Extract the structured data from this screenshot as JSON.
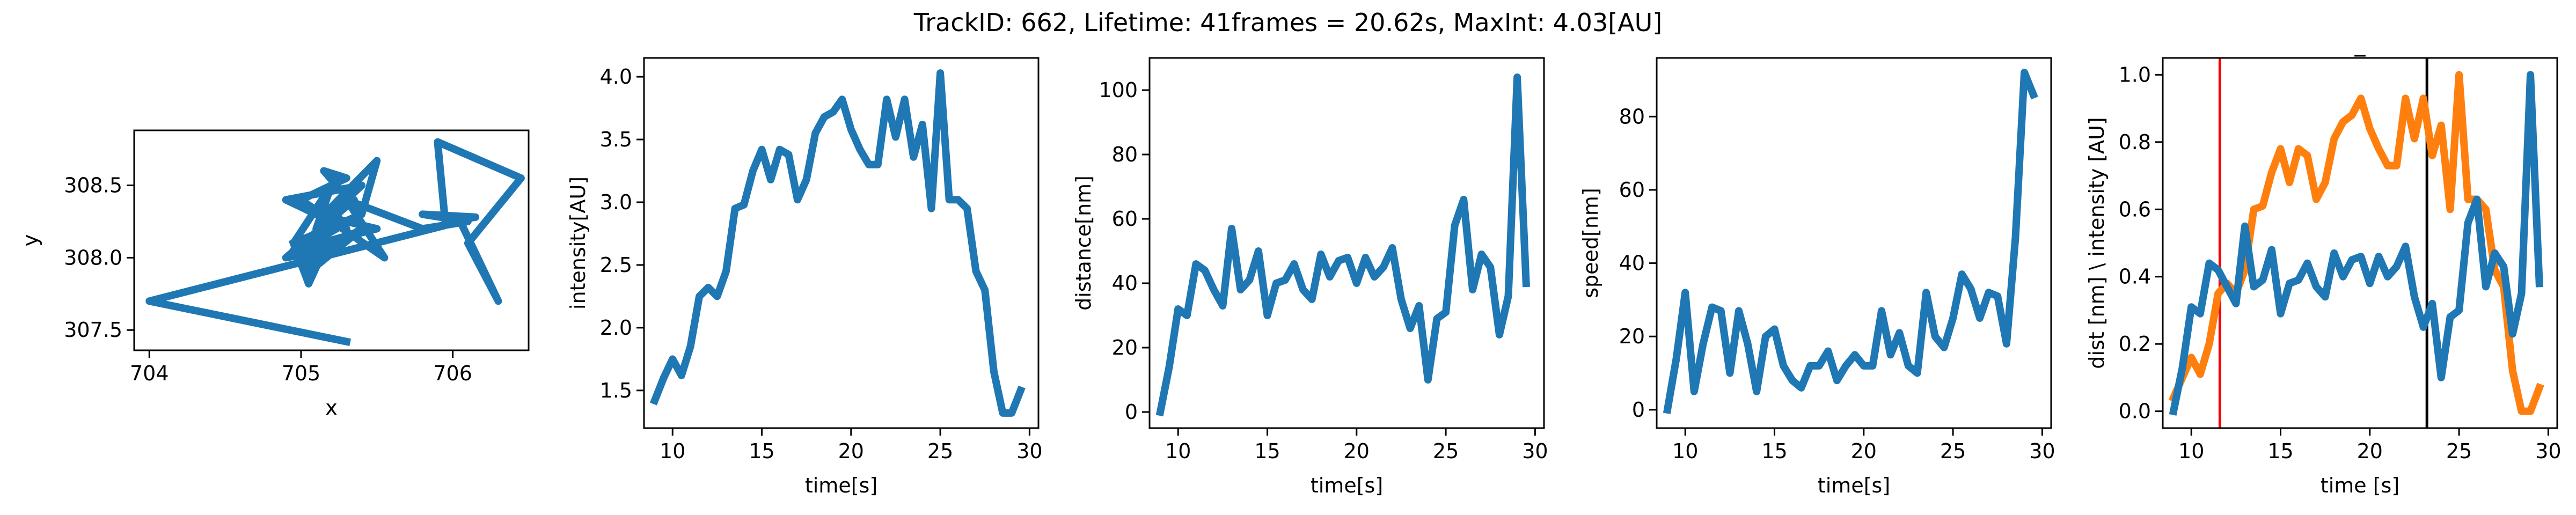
{
  "figure": {
    "suptitle": "TrackID: 662, Lifetime: 41frames = 20.62s, MaxInt: 4.03[AU]",
    "line_color": "#1f77b4",
    "second_line_color": "#ff7f0e",
    "marker_red_color": "#ff0000",
    "marker_black_color": "#000000"
  },
  "chart_data": [
    {
      "type": "line",
      "title": "",
      "xlabel": "x",
      "ylabel": "y",
      "xlim": [
        703.9,
        706.5
      ],
      "ylim": [
        307.36,
        308.88
      ],
      "xticks": [
        704,
        705,
        706
      ],
      "yticks": [
        307.5,
        308.0,
        308.5
      ],
      "ytick_labels": [
        "307.5",
        "308.0",
        "308.5"
      ],
      "series": [
        {
          "x": [
            705.3,
            704.0,
            706.05,
            706.3,
            706.1,
            706.45,
            705.9,
            705.95,
            706.15,
            705.8,
            706.1,
            705.8,
            705.3,
            705.55,
            705.0,
            705.3,
            705.15,
            705.4,
            705.5,
            705.2,
            705.3,
            704.9,
            705.4,
            705.1,
            705.2,
            704.95,
            705.4,
            704.9,
            705.35,
            705.1,
            705.5,
            704.95,
            705.3,
            705.0,
            705.4,
            705.05,
            705.1,
            704.9,
            705.15,
            705.05,
            704.95
          ],
          "y": [
            307.42,
            307.7,
            308.25,
            307.7,
            308.1,
            308.55,
            308.8,
            308.25,
            308.28,
            308.3,
            308.25,
            308.2,
            308.4,
            308.0,
            308.4,
            308.55,
            308.6,
            308.3,
            308.67,
            308.35,
            308.2,
            308.4,
            308.5,
            308.2,
            308.5,
            308.1,
            308.3,
            308.0,
            308.4,
            308.3,
            308.2,
            308.05,
            308.15,
            307.95,
            308.2,
            307.9,
            308.1,
            308.0,
            308.05,
            307.82,
            308.1
          ]
        }
      ]
    },
    {
      "type": "line",
      "title": "",
      "xlabel": "time[s]",
      "ylabel": "intensity[AU]",
      "xlim": [
        8.4,
        30.5
      ],
      "ylim": [
        1.2,
        4.15
      ],
      "xticks": [
        10,
        15,
        20,
        25,
        30
      ],
      "yticks": [
        1.5,
        2.0,
        2.5,
        3.0,
        3.5,
        4.0
      ],
      "ytick_labels": [
        "1.5",
        "2.0",
        "2.5",
        "3.0",
        "3.5",
        "4.0"
      ],
      "series": [
        {
          "x": [
            9.0,
            9.5,
            10.0,
            10.5,
            11.0,
            11.5,
            12.0,
            12.5,
            13.0,
            13.5,
            14.0,
            14.5,
            15.0,
            15.5,
            16.0,
            16.5,
            17.0,
            17.5,
            18.0,
            18.5,
            19.0,
            19.5,
            20.0,
            20.5,
            21.0,
            21.5,
            22.0,
            22.5,
            23.0,
            23.5,
            24.0,
            24.5,
            25.0,
            25.5,
            26.0,
            26.5,
            27.0,
            27.5,
            28.0,
            28.5,
            29.0,
            29.5
          ],
          "values": [
            1.42,
            1.6,
            1.75,
            1.62,
            1.85,
            2.25,
            2.32,
            2.25,
            2.45,
            2.95,
            2.98,
            3.25,
            3.42,
            3.18,
            3.42,
            3.38,
            3.02,
            3.18,
            3.55,
            3.68,
            3.72,
            3.82,
            3.58,
            3.42,
            3.3,
            3.3,
            3.82,
            3.52,
            3.82,
            3.36,
            3.62,
            2.95,
            4.03,
            3.02,
            3.02,
            2.95,
            2.45,
            2.3,
            1.65,
            1.32,
            1.32,
            1.5
          ]
        }
      ]
    },
    {
      "type": "line",
      "title": "",
      "xlabel": "time[s]",
      "ylabel": "distance[nm]",
      "xlim": [
        8.4,
        30.5
      ],
      "ylim": [
        -5,
        110
      ],
      "xticks": [
        10,
        15,
        20,
        25,
        30
      ],
      "yticks": [
        0,
        20,
        40,
        60,
        80,
        100
      ],
      "ytick_labels": [
        "0",
        "20",
        "40",
        "60",
        "80",
        "100"
      ],
      "series": [
        {
          "x": [
            9.0,
            9.5,
            10.0,
            10.5,
            11.0,
            11.5,
            12.0,
            12.5,
            13.0,
            13.5,
            14.0,
            14.5,
            15.0,
            15.5,
            16.0,
            16.5,
            17.0,
            17.5,
            18.0,
            18.5,
            19.0,
            19.5,
            20.0,
            20.5,
            21.0,
            21.5,
            22.0,
            22.5,
            23.0,
            23.5,
            24.0,
            24.5,
            25.0,
            25.5,
            26.0,
            26.5,
            27.0,
            27.5,
            28.0,
            28.5,
            29.0,
            29.5
          ],
          "values": [
            0,
            14,
            32,
            30,
            46,
            44,
            38,
            33,
            57,
            38,
            41,
            50,
            30,
            40,
            41,
            46,
            38,
            35,
            49,
            42,
            47,
            48,
            40,
            48,
            42,
            45,
            51,
            35,
            26,
            33,
            10,
            29,
            31,
            58,
            66,
            38,
            49,
            45,
            24,
            36,
            104,
            40
          ]
        }
      ]
    },
    {
      "type": "line",
      "title": "",
      "xlabel": "time[s]",
      "ylabel": "speed[nm]",
      "xlim": [
        8.4,
        30.5
      ],
      "ylim": [
        -5,
        96
      ],
      "xticks": [
        10,
        15,
        20,
        25,
        30
      ],
      "yticks": [
        0,
        20,
        40,
        60,
        80
      ],
      "ytick_labels": [
        "0",
        "20",
        "40",
        "60",
        "80"
      ],
      "series": [
        {
          "x": [
            9.0,
            9.5,
            10.0,
            10.5,
            11.0,
            11.5,
            12.0,
            12.5,
            13.0,
            13.5,
            14.0,
            14.5,
            15.0,
            15.5,
            16.0,
            16.5,
            17.0,
            17.5,
            18.0,
            18.5,
            19.0,
            19.5,
            20.0,
            20.5,
            21.0,
            21.5,
            22.0,
            22.5,
            23.0,
            23.5,
            24.0,
            24.5,
            25.0,
            25.5,
            26.0,
            26.5,
            27.0,
            27.5,
            28.0,
            28.5,
            29.0,
            29.5
          ],
          "values": [
            0,
            14,
            32,
            5,
            18,
            28,
            27,
            10,
            27,
            18,
            5,
            20,
            22,
            12,
            8,
            6,
            12,
            12,
            16,
            8,
            12,
            15,
            12,
            12,
            27,
            15,
            21,
            12,
            10,
            32,
            20,
            17,
            25,
            37,
            33,
            25,
            32,
            31,
            18,
            47,
            92,
            86
          ]
        }
      ]
    },
    {
      "type": "line",
      "title": "_",
      "xlabel": "time [s]",
      "ylabel": "dist [nm] \\ intensity [AU]",
      "xlim": [
        8.4,
        30.5
      ],
      "ylim": [
        -0.05,
        1.05
      ],
      "xticks": [
        10,
        15,
        20,
        25,
        30
      ],
      "yticks": [
        0.0,
        0.2,
        0.4,
        0.6,
        0.8,
        1.0
      ],
      "ytick_labels": [
        "0.0",
        "0.2",
        "0.4",
        "0.6",
        "0.8",
        "1.0"
      ],
      "vlines": [
        11.6,
        23.2
      ],
      "series": [
        {
          "color": "#1f77b4",
          "x": [
            9.0,
            9.5,
            10.0,
            10.5,
            11.0,
            11.5,
            12.0,
            12.5,
            13.0,
            13.5,
            14.0,
            14.5,
            15.0,
            15.5,
            16.0,
            16.5,
            17.0,
            17.5,
            18.0,
            18.5,
            19.0,
            19.5,
            20.0,
            20.5,
            21.0,
            21.5,
            22.0,
            22.5,
            23.0,
            23.5,
            24.0,
            24.5,
            25.0,
            25.5,
            26.0,
            26.5,
            27.0,
            27.5,
            28.0,
            28.5,
            29.0,
            29.5
          ],
          "values": [
            0.0,
            0.13,
            0.31,
            0.29,
            0.44,
            0.42,
            0.37,
            0.32,
            0.55,
            0.37,
            0.39,
            0.48,
            0.29,
            0.38,
            0.39,
            0.44,
            0.37,
            0.34,
            0.47,
            0.4,
            0.45,
            0.46,
            0.38,
            0.46,
            0.4,
            0.43,
            0.49,
            0.34,
            0.25,
            0.32,
            0.1,
            0.28,
            0.3,
            0.56,
            0.63,
            0.37,
            0.47,
            0.43,
            0.23,
            0.35,
            1.0,
            0.38
          ]
        },
        {
          "color": "#ff7f0e",
          "x": [
            9.0,
            9.5,
            10.0,
            10.5,
            11.0,
            11.5,
            12.0,
            12.5,
            13.0,
            13.5,
            14.0,
            14.5,
            15.0,
            15.5,
            16.0,
            16.5,
            17.0,
            17.5,
            18.0,
            18.5,
            19.0,
            19.5,
            20.0,
            20.5,
            21.0,
            21.5,
            22.0,
            22.5,
            23.0,
            23.5,
            24.0,
            24.5,
            25.0,
            25.5,
            26.0,
            26.5,
            27.0,
            27.5,
            28.0,
            28.5,
            29.0,
            29.5
          ],
          "values": [
            0.04,
            0.1,
            0.16,
            0.11,
            0.2,
            0.35,
            0.38,
            0.35,
            0.42,
            0.6,
            0.61,
            0.71,
            0.78,
            0.68,
            0.78,
            0.76,
            0.63,
            0.68,
            0.81,
            0.86,
            0.88,
            0.93,
            0.84,
            0.78,
            0.73,
            0.73,
            0.93,
            0.81,
            0.93,
            0.76,
            0.85,
            0.6,
            1.0,
            0.63,
            0.63,
            0.6,
            0.42,
            0.37,
            0.12,
            0.0,
            0.0,
            0.07
          ]
        }
      ]
    }
  ]
}
